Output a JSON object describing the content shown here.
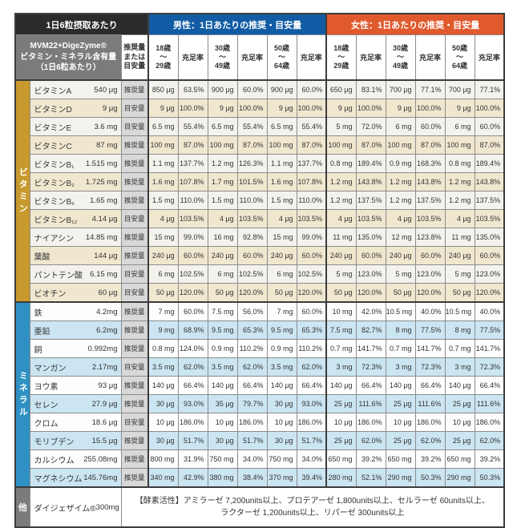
{
  "colors": {
    "dark_header_bg": "#2b2b2b",
    "gray_header_bg": "#7b7b7b",
    "male_header_bg": "#115ca4",
    "female_header_bg": "#e05a2e",
    "vitamin_band": "#c8992d",
    "mineral_band": "#2e90c3",
    "other_band": "#7b7b7b",
    "vitamin_alt_bg": "#f0e7cf",
    "mineral_alt_bg": "#cbe5f2",
    "type_col_bg": "#d8d8d8"
  },
  "header": {
    "top_left": "1日6粒摂取あたり",
    "product": [
      "MVM22+DigeZyme®",
      "ビタミン・ミネラル含有量",
      "（1日6粒あたり）"
    ],
    "type_col": [
      "推奨量",
      "または",
      "目安量"
    ],
    "male": "男性：1日あたりの推奨・目安量",
    "female": "女性：1日あたりの推奨・目安量",
    "ages": [
      [
        "18歳",
        "〜",
        "29歳"
      ],
      [
        "30歳",
        "〜",
        "49歳"
      ],
      [
        "50歳",
        "〜",
        "64歳"
      ]
    ],
    "rate_label": "充足率"
  },
  "sections": [
    {
      "key": "vitamins",
      "band": "ビタミン",
      "alt": [
        "row-vl",
        "row-vb"
      ],
      "rows": [
        {
          "name": "ビタミンA",
          "amount": "540 μg",
          "type": "推奨量",
          "cells": [
            "850 μg",
            "63.5%",
            "900 μg",
            "60.0%",
            "900 μg",
            "60.0%",
            "650 μg",
            "83.1%",
            "700 μg",
            "77.1%",
            "700 μg",
            "77.1%"
          ]
        },
        {
          "name": "ビタミンD",
          "amount": "9 μg",
          "type": "目安量",
          "cells": [
            "9 μg",
            "100.0%",
            "9 μg",
            "100.0%",
            "9 μg",
            "100.0%",
            "9 μg",
            "100.0%",
            "9 μg",
            "100.0%",
            "9 μg",
            "100.0%"
          ]
        },
        {
          "name": "ビタミンE",
          "amount": "3.6 mg",
          "type": "目安量",
          "cells": [
            "6.5 mg",
            "55.4%",
            "6.5 mg",
            "55.4%",
            "6.5 mg",
            "55.4%",
            "5 mg",
            "72.0%",
            "6 mg",
            "60.0%",
            "6 mg",
            "60.0%"
          ]
        },
        {
          "name": "ビタミンC",
          "amount": "87 mg",
          "type": "推奨量",
          "cells": [
            "100 mg",
            "87.0%",
            "100 mg",
            "87.0%",
            "100 mg",
            "87.0%",
            "100 mg",
            "87.0%",
            "100 mg",
            "87.0%",
            "100 mg",
            "87.0%"
          ]
        },
        {
          "name": "ビタミンB₁",
          "amount": "1.515 mg",
          "type": "推奨量",
          "cells": [
            "1.1 mg",
            "137.7%",
            "1.2 mg",
            "126.3%",
            "1.1 mg",
            "137.7%",
            "0.8 mg",
            "189.4%",
            "0.9 mg",
            "168.3%",
            "0.8 mg",
            "189.4%"
          ]
        },
        {
          "name": "ビタミンB₂",
          "amount": "1.725 mg",
          "type": "推奨量",
          "cells": [
            "1.6 mg",
            "107.8%",
            "1.7 mg",
            "101.5%",
            "1.6 mg",
            "107.8%",
            "1.2 mg",
            "143.8%",
            "1.2 mg",
            "143.8%",
            "1.2 mg",
            "143.8%"
          ]
        },
        {
          "name": "ビタミンB₆",
          "amount": "1.65 mg",
          "type": "推奨量",
          "cells": [
            "1.5 mg",
            "110.0%",
            "1.5 mg",
            "110.0%",
            "1.5 mg",
            "110.0%",
            "1.2 mg",
            "137.5%",
            "1.2 mg",
            "137.5%",
            "1.2 mg",
            "137.5%"
          ]
        },
        {
          "name": "ビタミンB₁₂",
          "amount": "4.14 μg",
          "type": "目安量",
          "cells": [
            "4 μg",
            "103.5%",
            "4 μg",
            "103.5%",
            "4 μg",
            "103.5%",
            "4 μg",
            "103.5%",
            "4 μg",
            "103.5%",
            "4 μg",
            "103.5%"
          ]
        },
        {
          "name": "ナイアシン",
          "amount": "14.85 mg",
          "type": "推奨量",
          "cells": [
            "15 mg",
            "99.0%",
            "16 mg",
            "92.8%",
            "15 mg",
            "99.0%",
            "11 mg",
            "135.0%",
            "12 mg",
            "123.8%",
            "11 mg",
            "135.0%"
          ]
        },
        {
          "name": "葉酸",
          "amount": "144 μg",
          "type": "推奨量",
          "cells": [
            "240 μg",
            "60.0%",
            "240 μg",
            "60.0%",
            "240 μg",
            "60.0%",
            "240 μg",
            "60.0%",
            "240 μg",
            "60.0%",
            "240 μg",
            "60.0%"
          ]
        },
        {
          "name": "パントテン酸",
          "amount": "6.15 mg",
          "type": "目安量",
          "cells": [
            "6 mg",
            "102.5%",
            "6 mg",
            "102.5%",
            "6 mg",
            "102.5%",
            "5 mg",
            "123.0%",
            "5 mg",
            "123.0%",
            "5 mg",
            "123.0%"
          ]
        },
        {
          "name": "ビオチン",
          "amount": "60 μg",
          "type": "目安量",
          "cells": [
            "50 μg",
            "120.0%",
            "50 μg",
            "120.0%",
            "50 μg",
            "120.0%",
            "50 μg",
            "120.0%",
            "50 μg",
            "120.0%",
            "50 μg",
            "120.0%"
          ]
        }
      ]
    },
    {
      "key": "minerals",
      "band": "ミネラル",
      "alt": [
        "row-mw",
        "row-mb"
      ],
      "rows": [
        {
          "name": "鉄",
          "amount": "4.2mg",
          "type": "推奨量",
          "cells": [
            "7 mg",
            "60.0%",
            "7.5 mg",
            "56.0%",
            "7 mg",
            "60.0%",
            "10 mg",
            "42.0%",
            "10.5 mg",
            "40.0%",
            "10.5 mg",
            "40.0%"
          ]
        },
        {
          "name": "亜鉛",
          "amount": "6.2mg",
          "type": "推奨量",
          "cells": [
            "9 mg",
            "68.9%",
            "9.5 mg",
            "65.3%",
            "9.5 mg",
            "65.3%",
            "7.5 mg",
            "82.7%",
            "8 mg",
            "77.5%",
            "8 mg",
            "77.5%"
          ]
        },
        {
          "name": "銅",
          "amount": "0.992mg",
          "type": "推奨量",
          "cells": [
            "0.8 mg",
            "124.0%",
            "0.9 mg",
            "110.2%",
            "0.9 mg",
            "110.2%",
            "0.7 mg",
            "141.7%",
            "0.7 mg",
            "141.7%",
            "0.7 mg",
            "141.7%"
          ]
        },
        {
          "name": "マンガン",
          "amount": "2.17mg",
          "type": "目安量",
          "cells": [
            "3.5 mg",
            "62.0%",
            "3.5 mg",
            "62.0%",
            "3.5 mg",
            "62.0%",
            "3 mg",
            "72.3%",
            "3 mg",
            "72.3%",
            "3 mg",
            "72.3%"
          ]
        },
        {
          "name": "ヨウ素",
          "amount": "93 μg",
          "type": "推奨量",
          "cells": [
            "140 μg",
            "66.4%",
            "140 μg",
            "66.4%",
            "140 μg",
            "66.4%",
            "140 μg",
            "66.4%",
            "140 μg",
            "66.4%",
            "140 μg",
            "66.4%"
          ]
        },
        {
          "name": "セレン",
          "amount": "27.9 μg",
          "type": "推奨量",
          "cells": [
            "30 μg",
            "93.0%",
            "35 μg",
            "79.7%",
            "30 μg",
            "93.0%",
            "25 μg",
            "111.6%",
            "25 μg",
            "111.6%",
            "25 μg",
            "111.6%"
          ]
        },
        {
          "name": "クロム",
          "amount": "18.6 μg",
          "type": "目安量",
          "cells": [
            "10 μg",
            "186.0%",
            "10 μg",
            "186.0%",
            "10 μg",
            "186.0%",
            "10 μg",
            "186.0%",
            "10 μg",
            "186.0%",
            "10 μg",
            "186.0%"
          ]
        },
        {
          "name": "モリブデン",
          "amount": "15.5 μg",
          "type": "推奨量",
          "cells": [
            "30 μg",
            "51.7%",
            "30 μg",
            "51.7%",
            "30 μg",
            "51.7%",
            "25 μg",
            "62.0%",
            "25 μg",
            "62.0%",
            "25 μg",
            "62.0%"
          ]
        },
        {
          "name": "カルシウム",
          "amount": "255.08mg",
          "type": "推奨量",
          "cells": [
            "800 mg",
            "31.9%",
            "750 mg",
            "34.0%",
            "750 mg",
            "34.0%",
            "650 mg",
            "39.2%",
            "650 mg",
            "39.2%",
            "650 mg",
            "39.2%"
          ]
        },
        {
          "name": "マグネシウム",
          "amount": "145.76mg",
          "type": "推奨量",
          "cells": [
            "340 mg",
            "42.9%",
            "380 mg",
            "38.4%",
            "370 mg",
            "39.4%",
            "280 mg",
            "52.1%",
            "290 mg",
            "50.3%",
            "290 mg",
            "50.3%"
          ]
        }
      ]
    },
    {
      "key": "other",
      "band": "他",
      "alt": [
        "row-ow"
      ],
      "rows": [
        {
          "name": "ダイジェザイム®",
          "amount": "300mg",
          "enzyme": [
            "【酵素活性】アミラーゼ 7,200units以上、プロテアーゼ 1,800units以上、セルラーゼ 60units以上、",
            "ラクターゼ 1,200units以上、リパーゼ 300units以上"
          ]
        }
      ]
    }
  ]
}
